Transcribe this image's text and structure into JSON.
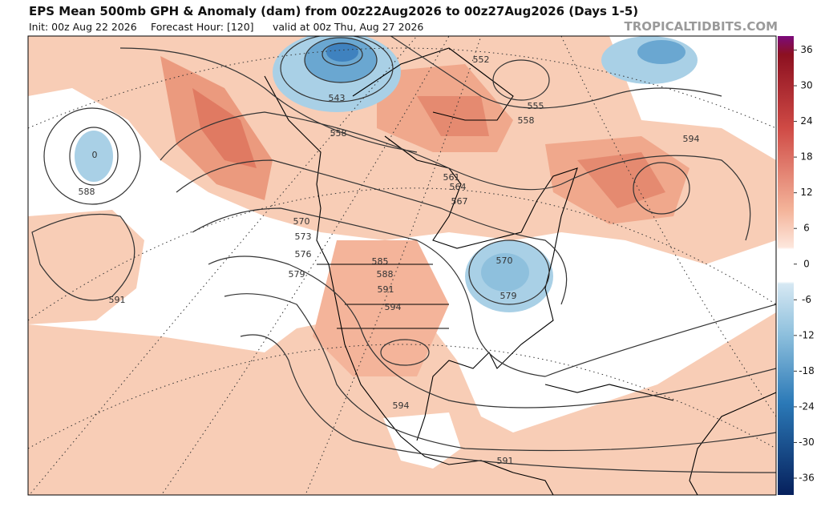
{
  "header": {
    "title": "EPS Mean 500mb GPH & Anomaly (dam) from 00z22Aug2026 to 00z27Aug2026 (Days 1-5)",
    "init": "Init: 00z Aug 22 2026",
    "forecast_hour": "Forecast Hour: [120]",
    "valid": "valid at 00z Thu, Aug 27 2026",
    "watermark": "TROPICALTIDBITS.COM"
  },
  "contour_labels": [
    543,
    552,
    555,
    558,
    558,
    594,
    561,
    564,
    567,
    570,
    573,
    576,
    579,
    585,
    588,
    591,
    594,
    570,
    579,
    588,
    591,
    594,
    591,
    0
  ],
  "colorbar": {
    "ticks": [
      36,
      30,
      24,
      18,
      12,
      6,
      0,
      -6,
      -12,
      -18,
      -24,
      -30,
      -36
    ]
  }
}
